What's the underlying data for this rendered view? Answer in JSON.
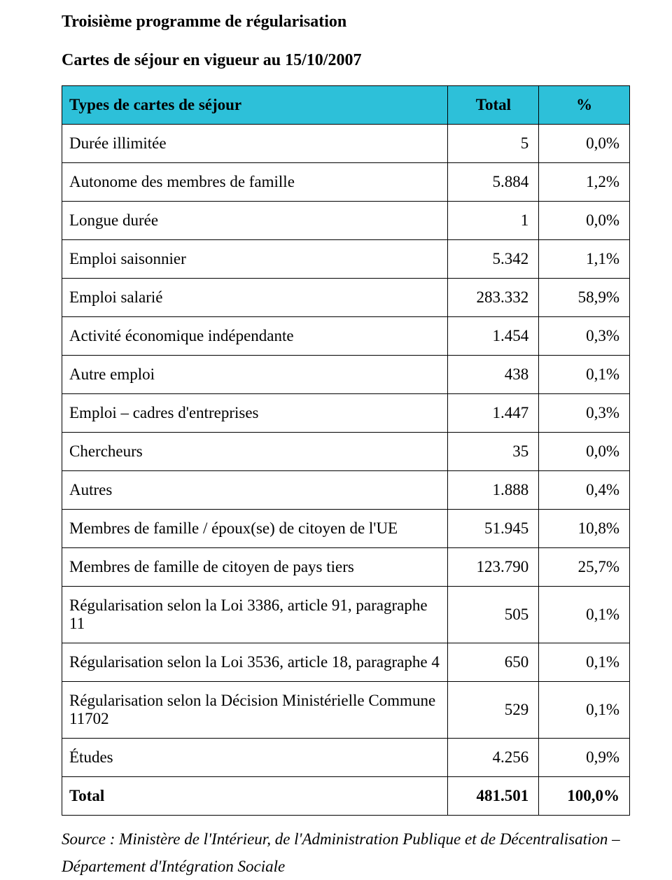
{
  "title": "Troisième programme de régularisation",
  "subtitle": "Cartes de séjour en vigueur au 15/10/2007",
  "table": {
    "header_bg": "#2dc0d9",
    "columns": [
      "Types de cartes de séjour",
      "Total",
      "%"
    ],
    "rows": [
      {
        "label": "Durée illimitée",
        "total": "5",
        "pct": "0,0%"
      },
      {
        "label": "Autonome des membres de famille",
        "total": "5.884",
        "pct": "1,2%"
      },
      {
        "label": "Longue durée",
        "total": "1",
        "pct": "0,0%"
      },
      {
        "label": "Emploi saisonnier",
        "total": "5.342",
        "pct": "1,1%"
      },
      {
        "label": "Emploi salarié",
        "total": "283.332",
        "pct": "58,9%"
      },
      {
        "label": "Activité économique indépendante",
        "total": "1.454",
        "pct": "0,3%"
      },
      {
        "label": "Autre emploi",
        "total": "438",
        "pct": "0,1%"
      },
      {
        "label": "Emploi – cadres d'entreprises",
        "total": "1.447",
        "pct": "0,3%"
      },
      {
        "label": "Chercheurs",
        "total": "35",
        "pct": "0,0%"
      },
      {
        "label": "Autres",
        "total": "1.888",
        "pct": "0,4%"
      },
      {
        "label": "Membres de famille / époux(se) de citoyen de l'UE",
        "total": "51.945",
        "pct": "10,8%"
      },
      {
        "label": "Membres de famille de citoyen de pays tiers",
        "total": "123.790",
        "pct": "25,7%"
      },
      {
        "label": "Régularisation selon la Loi 3386, article 91, paragraphe 11",
        "total": "505",
        "pct": "0,1%"
      },
      {
        "label": "Régularisation selon la Loi 3536, article 18, paragraphe 4",
        "total": "650",
        "pct": "0,1%"
      },
      {
        "label": "Régularisation selon la Décision Ministérielle Commune 11702",
        "total": "529",
        "pct": "0,1%"
      },
      {
        "label": "Études",
        "total": "4.256",
        "pct": "0,9%"
      }
    ],
    "total_row": {
      "label": "Total",
      "total": "481.501",
      "pct": "100,0%"
    }
  },
  "source": "Source : Ministère de l'Intérieur, de l'Administration Publique et de Décentralisation – Département d'Intégration Sociale"
}
